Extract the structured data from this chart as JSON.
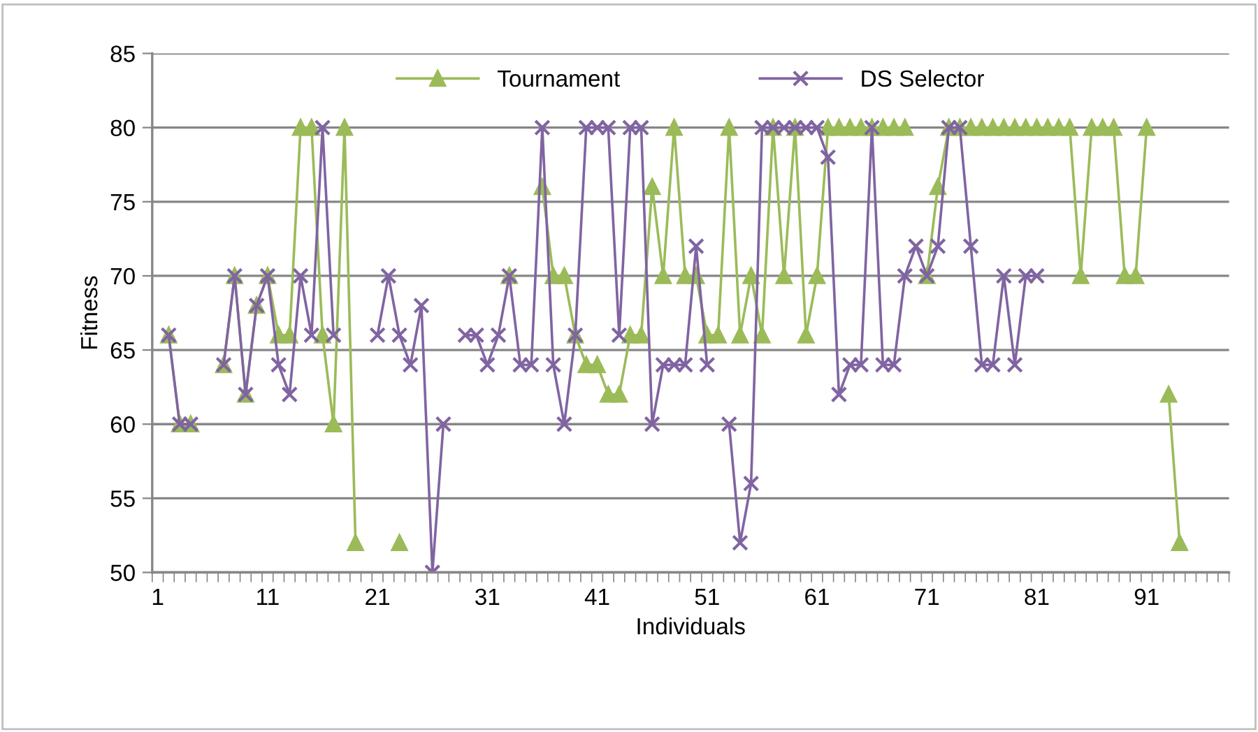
{
  "chart_data": {
    "type": "line",
    "xlabel": "Individuals",
    "ylabel": "Fitness",
    "categories": [
      "1",
      null,
      null,
      null,
      null,
      null,
      null,
      null,
      null,
      null,
      "11",
      null,
      null,
      null,
      null,
      null,
      null,
      null,
      null,
      null,
      "21",
      null,
      null,
      null,
      null,
      null,
      null,
      null,
      null,
      null,
      "31",
      null,
      null,
      null,
      null,
      null,
      null,
      null,
      null,
      null,
      "41",
      null,
      null,
      null,
      null,
      null,
      null,
      null,
      null,
      null,
      "51",
      null,
      null,
      null,
      null,
      null,
      null,
      null,
      null,
      null,
      "61",
      null,
      null,
      null,
      null,
      null,
      null,
      null,
      null,
      null,
      "71",
      null,
      null,
      null,
      null,
      null,
      null,
      null,
      null,
      null,
      "81",
      null,
      null,
      null,
      null,
      null,
      null,
      null,
      null,
      null,
      "91",
      null,
      null,
      null,
      null,
      null,
      null,
      null
    ],
    "ylim": [
      50,
      85
    ],
    "yticks": [
      50,
      55,
      60,
      65,
      70,
      75,
      80,
      85
    ],
    "grid": "y",
    "legend": "top",
    "series": [
      {
        "name": "Tournament",
        "color": "#9bbb59",
        "marker": "triangle",
        "values": [
          null,
          66,
          60,
          60,
          null,
          null,
          64,
          70,
          62,
          68,
          70,
          66,
          66,
          80,
          80,
          66,
          60,
          80,
          52,
          null,
          null,
          null,
          52,
          null,
          null,
          null,
          null,
          null,
          null,
          null,
          null,
          null,
          70,
          null,
          null,
          76,
          70,
          70,
          66,
          64,
          64,
          62,
          62,
          66,
          66,
          76,
          70,
          80,
          70,
          70,
          66,
          66,
          80,
          66,
          70,
          66,
          80,
          70,
          80,
          66,
          70,
          80,
          80,
          80,
          80,
          80,
          80,
          80,
          80,
          null,
          70,
          76,
          80,
          80,
          80,
          80,
          80,
          80,
          80,
          80,
          80,
          80,
          80,
          80,
          70,
          80,
          80,
          80,
          70,
          70,
          80,
          null,
          62,
          52,
          null,
          null,
          null,
          null
        ]
      },
      {
        "name": "DS Selector",
        "color": "#8064a2",
        "marker": "cross",
        "values": [
          null,
          66,
          60,
          60,
          null,
          null,
          64,
          70,
          62,
          68,
          70,
          64,
          62,
          70,
          66,
          80,
          66,
          null,
          null,
          null,
          66,
          70,
          66,
          64,
          68,
          50,
          60,
          null,
          66,
          66,
          64,
          66,
          70,
          64,
          64,
          80,
          64,
          60,
          66,
          80,
          80,
          80,
          66,
          80,
          80,
          60,
          64,
          64,
          64,
          72,
          64,
          null,
          60,
          52,
          56,
          80,
          80,
          80,
          80,
          80,
          80,
          78,
          62,
          64,
          64,
          80,
          64,
          64,
          70,
          72,
          70,
          72,
          80,
          80,
          72,
          64,
          64,
          70,
          64,
          70,
          70,
          null,
          null,
          null,
          null,
          null,
          null,
          null,
          null,
          null,
          null,
          null,
          null,
          null,
          null,
          null,
          null,
          null
        ]
      }
    ]
  }
}
